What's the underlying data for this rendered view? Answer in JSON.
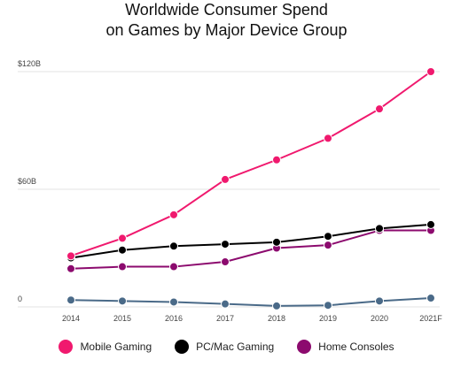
{
  "chart_data": {
    "type": "line",
    "title_lines": [
      "Worldwide Consumer Spend",
      "on Games by Major Device Group"
    ],
    "xlabel": "",
    "ylabel": "",
    "categories": [
      "2014",
      "2015",
      "2016",
      "2017",
      "2018",
      "2019",
      "2020",
      "2021F"
    ],
    "y_ticks": [
      {
        "value": 0,
        "label": "0"
      },
      {
        "value": 60,
        "label": "$60B"
      },
      {
        "value": 120,
        "label": "$120B"
      }
    ],
    "ylim": [
      0,
      120
    ],
    "grid": true,
    "legend_position": "bottom",
    "series": [
      {
        "name": "Mobile Gaming",
        "color": "#f0196e",
        "values": [
          26,
          35,
          47,
          65,
          75,
          86,
          101,
          120
        ]
      },
      {
        "name": "PC/Mac Gaming",
        "color": "#000000",
        "values": [
          25,
          29,
          31,
          32,
          33,
          36,
          40,
          42
        ]
      },
      {
        "name": "Home Consoles",
        "color": "#8c0a6e",
        "values": [
          19.5,
          20.5,
          20.5,
          23,
          30,
          31.5,
          39,
          39
        ]
      },
      {
        "name": "",
        "color": "#4a6a88",
        "values": [
          3.5,
          3,
          2.5,
          1.5,
          0.5,
          0.8,
          3,
          4.5
        ]
      }
    ]
  }
}
